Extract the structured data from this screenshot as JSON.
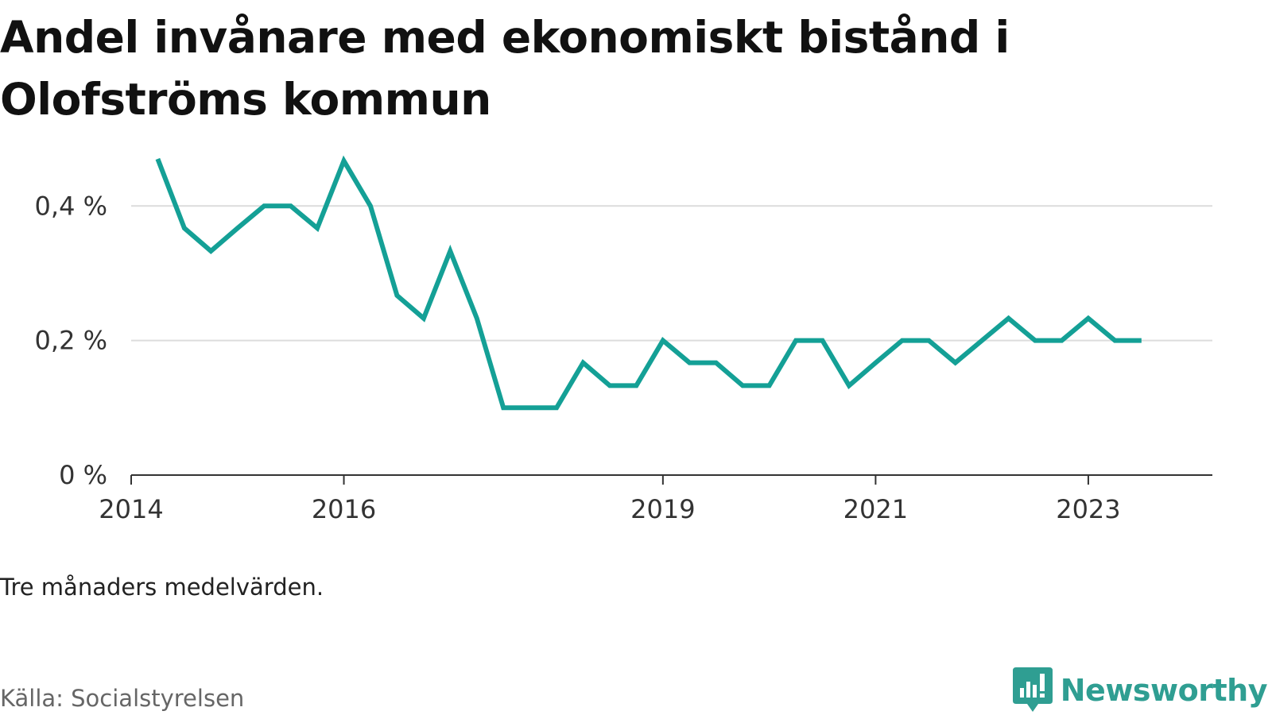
{
  "title": "Andel invånare med ekonomiskt bistånd i Olofströms kommun",
  "note": "Tre månaders medelvärden.",
  "source": "Källa: Socialstyrelsen",
  "brand": {
    "name": "Newsworthy",
    "icon": "newsworthy-chart-bubble-icon",
    "color": "#2f9e92"
  },
  "colors": {
    "line": "#14a096",
    "grid": "#dcdcdc",
    "axis": "#333333"
  },
  "chart_data": {
    "type": "line",
    "title": "Andel invånare med ekonomiskt bistånd i Olofströms kommun",
    "xlabel": "",
    "ylabel": "",
    "x_ticks": [
      "2014",
      "2016",
      "2019",
      "2021",
      "2023"
    ],
    "y_ticks": [
      "0 %",
      "0,2 %",
      "0,4 %"
    ],
    "ylim": [
      0,
      0.47
    ],
    "xlim": [
      "2014-01",
      "2024-03"
    ],
    "grid": true,
    "legend": "none",
    "series": [
      {
        "values": [
          {
            "x": "2014-04",
            "y": 0.47
          },
          {
            "x": "2014-07",
            "y": 0.367
          },
          {
            "x": "2014-10",
            "y": 0.333
          },
          {
            "x": "2015-01",
            "y": 0.367
          },
          {
            "x": "2015-04",
            "y": 0.4
          },
          {
            "x": "2015-07",
            "y": 0.4
          },
          {
            "x": "2015-10",
            "y": 0.367
          },
          {
            "x": "2016-01",
            "y": 0.467
          },
          {
            "x": "2016-04",
            "y": 0.4
          },
          {
            "x": "2016-07",
            "y": 0.267
          },
          {
            "x": "2016-10",
            "y": 0.233
          },
          {
            "x": "2017-01",
            "y": 0.333
          },
          {
            "x": "2017-04",
            "y": 0.233
          },
          {
            "x": "2017-07",
            "y": 0.1
          },
          {
            "x": "2017-10",
            "y": 0.1
          },
          {
            "x": "2018-01",
            "y": 0.1
          },
          {
            "x": "2018-04",
            "y": 0.167
          },
          {
            "x": "2018-07",
            "y": 0.133
          },
          {
            "x": "2018-10",
            "y": 0.133
          },
          {
            "x": "2019-01",
            "y": 0.2
          },
          {
            "x": "2019-04",
            "y": 0.167
          },
          {
            "x": "2019-07",
            "y": 0.167
          },
          {
            "x": "2019-10",
            "y": 0.133
          },
          {
            "x": "2020-01",
            "y": 0.133
          },
          {
            "x": "2020-04",
            "y": 0.2
          },
          {
            "x": "2020-07",
            "y": 0.2
          },
          {
            "x": "2020-10",
            "y": 0.133
          },
          {
            "x": "2021-01",
            "y": 0.167
          },
          {
            "x": "2021-04",
            "y": 0.2
          },
          {
            "x": "2021-07",
            "y": 0.2
          },
          {
            "x": "2021-10",
            "y": 0.167
          },
          {
            "x": "2022-01",
            "y": 0.2
          },
          {
            "x": "2022-04",
            "y": 0.233
          },
          {
            "x": "2022-07",
            "y": 0.2
          },
          {
            "x": "2022-10",
            "y": 0.2
          },
          {
            "x": "2023-01",
            "y": 0.233
          },
          {
            "x": "2023-04",
            "y": 0.2
          },
          {
            "x": "2023-07",
            "y": 0.2
          }
        ]
      }
    ]
  }
}
